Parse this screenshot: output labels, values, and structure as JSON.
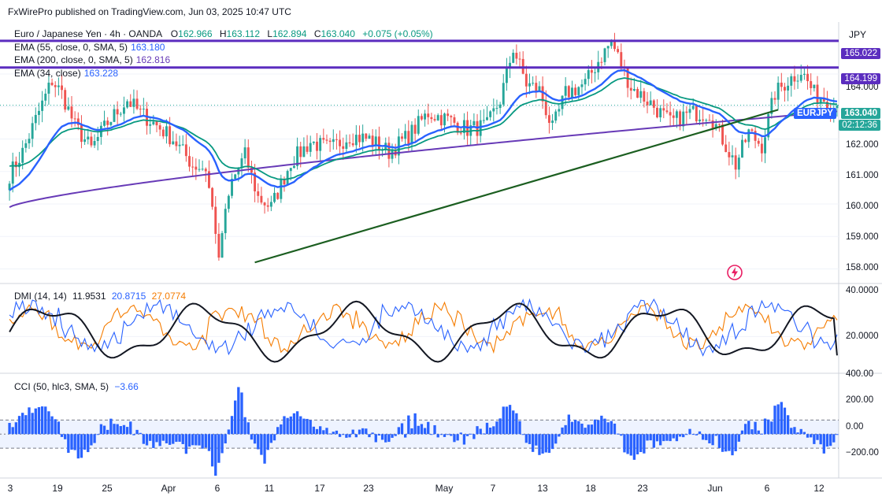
{
  "header": {
    "published": "FxWirePro published on TradingView.com, Jun 03, 2025 10:47 UTC"
  },
  "symbol": {
    "title": "Euro / Japanese Yen · 4h · OANDA",
    "open_label": "O",
    "open": "162.966",
    "high_label": "H",
    "high": "163.112",
    "low_label": "L",
    "low": "162.894",
    "close_label": "C",
    "close": "163.040",
    "change": "+0.075 (+0.05%)",
    "currency": "JPY",
    "ticker": "EURJPY",
    "countdown": "02:12:36"
  },
  "indicators": [
    {
      "label": "EMA (55, close, 0, SMA, 5)",
      "value": "163.180",
      "color": "#2962ff"
    },
    {
      "label": "EMA (200, close, 0, SMA, 5)",
      "value": "162.816",
      "color": "#673ab7"
    },
    {
      "label": "EMA (34, close)",
      "value": "163.228",
      "color": "#2962ff"
    }
  ],
  "levels": {
    "resistance_upper": "165.022",
    "resistance_lower": "164.199"
  },
  "price_axis": [
    "164.000",
    "163.000",
    "162.000",
    "161.000",
    "160.000",
    "159.000",
    "158.000"
  ],
  "dmi": {
    "label": "DMI (14, 14)",
    "adx": "11.9531",
    "plus_di": "20.8715",
    "minus_di": "27.0774",
    "axis": [
      "40.0000",
      "20.0000"
    ]
  },
  "cci": {
    "label": "CCI (50, hlc3, SMA, 5)",
    "value": "−3.66",
    "axis": [
      "400.00",
      "200.00",
      "0.00",
      "−200.00"
    ]
  },
  "time_axis": [
    "3",
    "19",
    "25",
    "Apr",
    "6",
    "11",
    "17",
    "23",
    "May",
    "7",
    "13",
    "18",
    "23",
    "Jun",
    "6",
    "12"
  ],
  "colors": {
    "up": "#26a69a",
    "down": "#ef5350",
    "ema34": "#2962ff",
    "ema55": "#089981",
    "ema200": "#673ab7",
    "level": "#5b2dbf",
    "trend": "#1b5e20",
    "dmi_plus": "#2962ff",
    "dmi_minus": "#f57c00",
    "adx": "#131722",
    "cci": "#2962ff"
  },
  "chart_data": {
    "type": "candlestick",
    "timeframe": "4h",
    "ylim": [
      157.6,
      165.6
    ],
    "price_path": [
      [
        0,
        160.9
      ],
      [
        4,
        161.6
      ],
      [
        8,
        162.6
      ],
      [
        13,
        163.8
      ],
      [
        16,
        163.4
      ],
      [
        20,
        162.4
      ],
      [
        25,
        161.7
      ],
      [
        30,
        162.5
      ],
      [
        36,
        163.2
      ],
      [
        40,
        162.8
      ],
      [
        44,
        162.5
      ],
      [
        50,
        162.0
      ],
      [
        56,
        161.2
      ],
      [
        60,
        161.1
      ],
      [
        64,
        158.6
      ],
      [
        68,
        160.7
      ],
      [
        72,
        161.5
      ],
      [
        76,
        160.2
      ],
      [
        80,
        159.9
      ],
      [
        86,
        161.3
      ],
      [
        92,
        161.9
      ],
      [
        98,
        161.7
      ],
      [
        104,
        162.1
      ],
      [
        110,
        162.0
      ],
      [
        116,
        161.6
      ],
      [
        122,
        162.1
      ],
      [
        128,
        162.8
      ],
      [
        134,
        162.6
      ],
      [
        140,
        162.3
      ],
      [
        146,
        162.4
      ],
      [
        150,
        163.2
      ],
      [
        154,
        164.8
      ],
      [
        158,
        163.7
      ],
      [
        162,
        163.5
      ],
      [
        166,
        162.3
      ],
      [
        170,
        163.4
      ],
      [
        176,
        163.7
      ],
      [
        180,
        164.4
      ],
      [
        184,
        165.0
      ],
      [
        190,
        163.6
      ],
      [
        196,
        163.1
      ],
      [
        202,
        162.5
      ],
      [
        208,
        162.8
      ],
      [
        214,
        162.8
      ],
      [
        218,
        162.0
      ],
      [
        222,
        161.2
      ],
      [
        226,
        162.2
      ],
      [
        230,
        161.8
      ],
      [
        234,
        163.4
      ],
      [
        238,
        163.8
      ],
      [
        242,
        164.1
      ],
      [
        246,
        163.4
      ],
      [
        250,
        163.2
      ],
      [
        253,
        162.9
      ]
    ],
    "levels": [
      165.022,
      164.199
    ],
    "trendline": {
      "from": [
        75,
        158.2
      ],
      "to": [
        235,
        162.9
      ]
    },
    "series": [
      {
        "name": "EMA (34, close)",
        "last": 163.228
      },
      {
        "name": "EMA (55, close, 0, SMA, 5)",
        "last": 163.18
      },
      {
        "name": "EMA (200, close, 0, SMA, 5)",
        "last": 162.816
      }
    ],
    "dmi": {
      "ylim": [
        5,
        42
      ],
      "adx_last": 11.9531,
      "plus_di_last": 20.8715,
      "minus_di_last": 27.0774
    },
    "cci": {
      "ylim": [
        -300,
        420
      ],
      "band": [
        100,
        -100
      ],
      "last": -3.66
    }
  }
}
